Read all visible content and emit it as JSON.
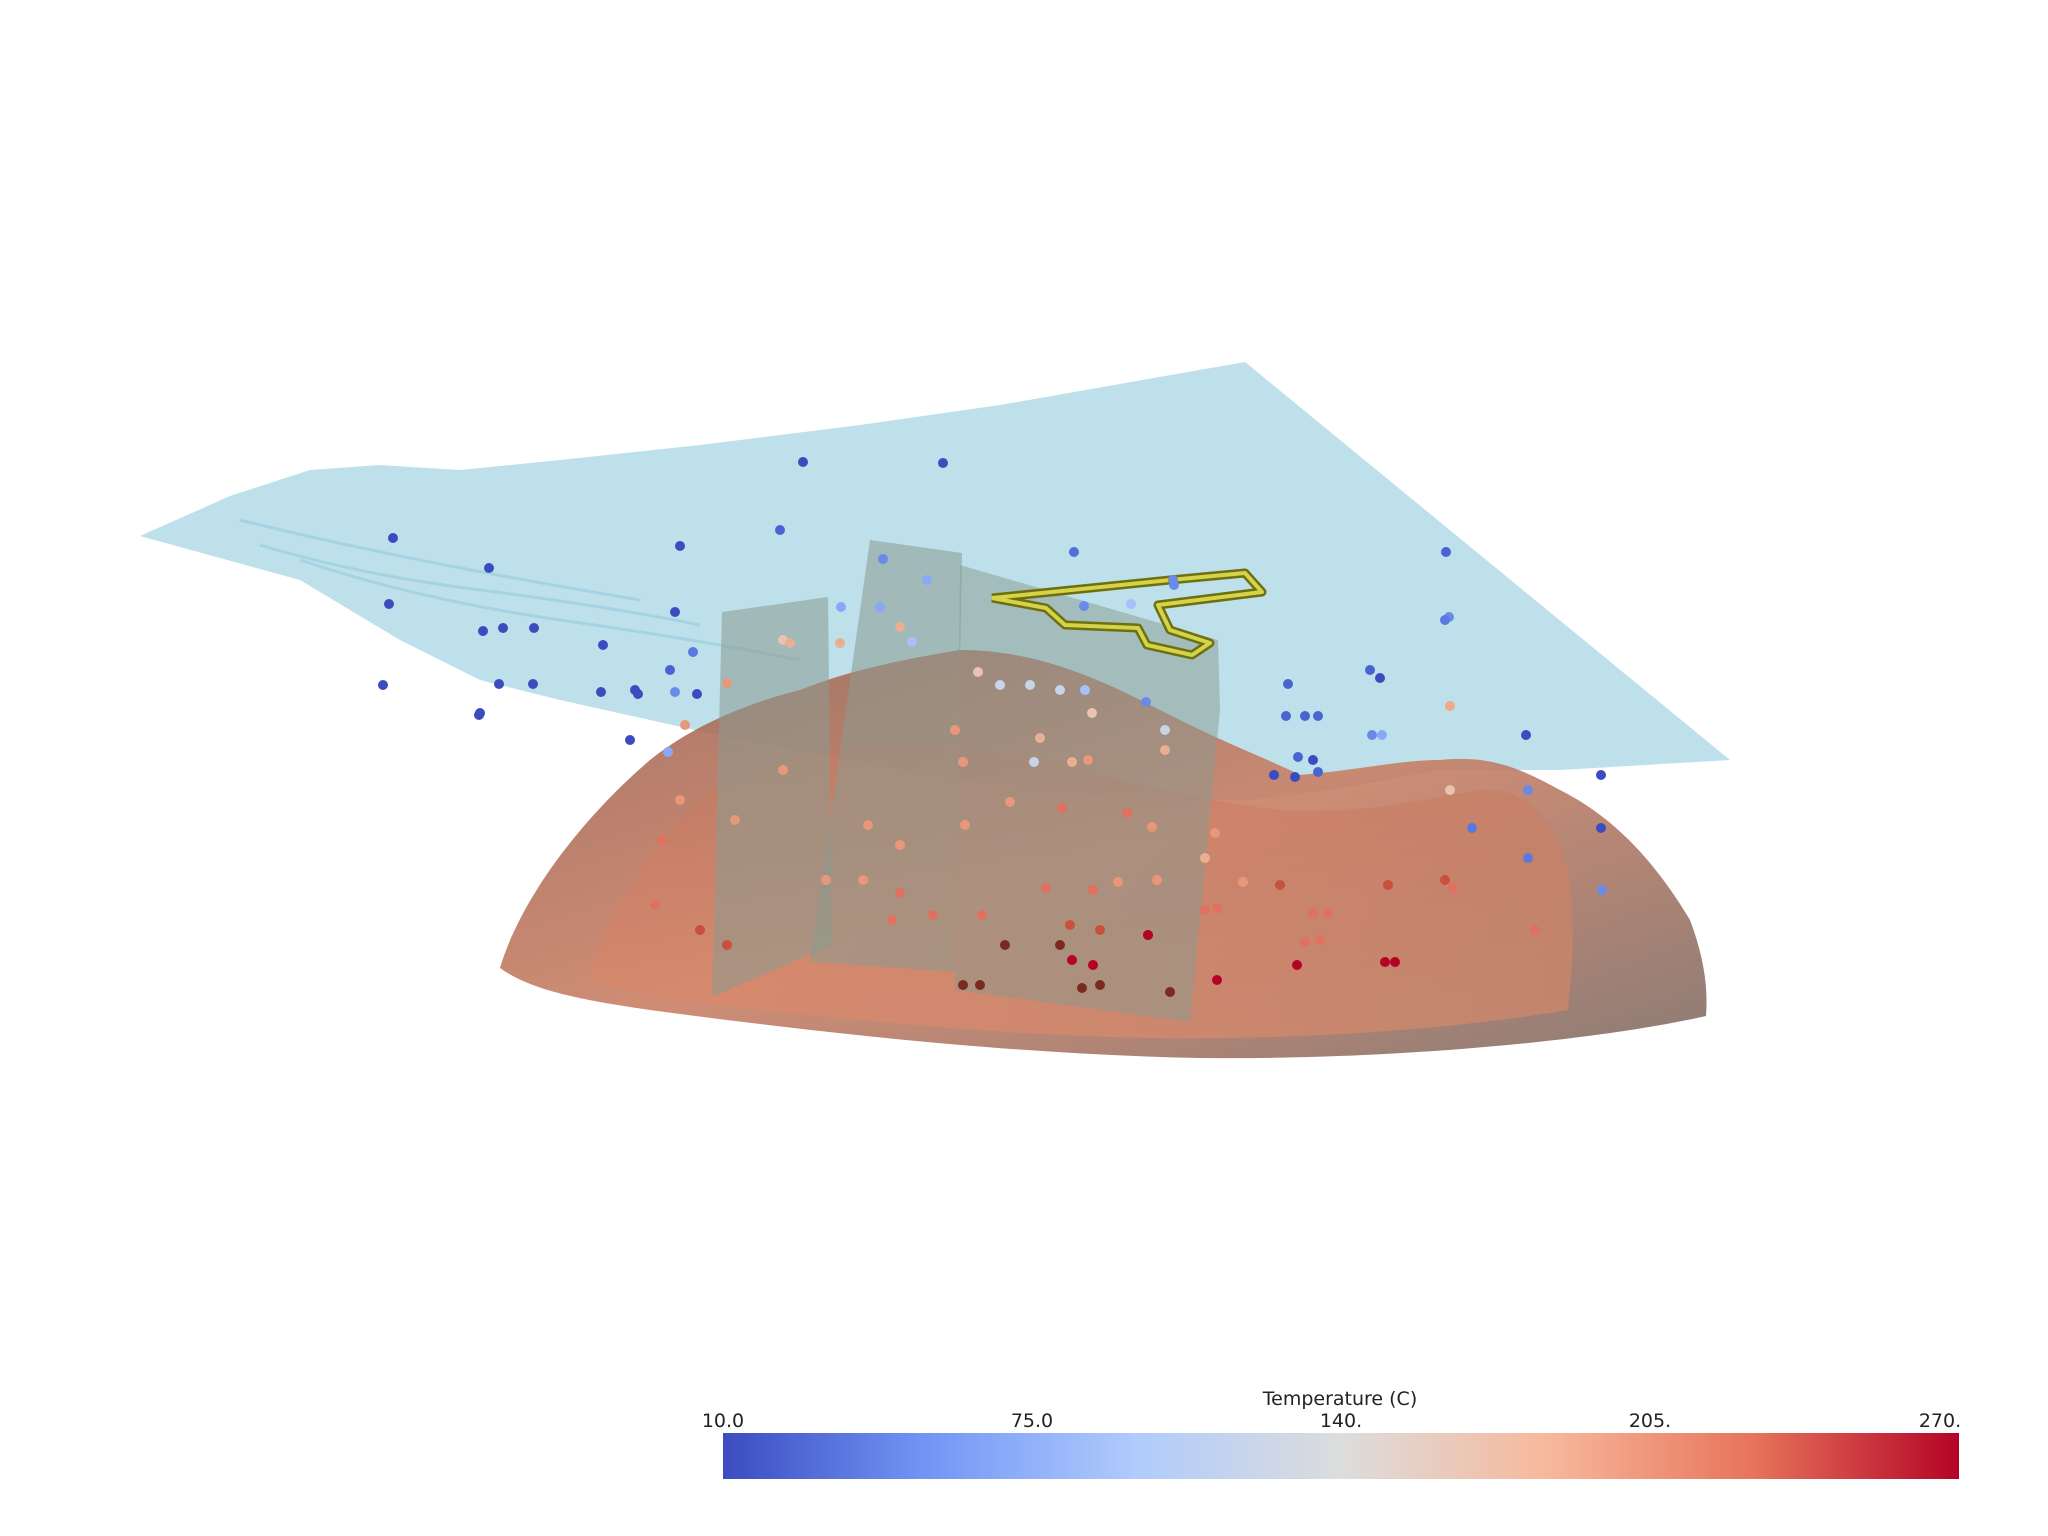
{
  "scene": {
    "water_table_color": "#add8e6",
    "reservoir_color": "#b87a60",
    "section_plane_color": "#8a9a90",
    "outline_color": "#c8c832"
  },
  "colorbar": {
    "title": "Temperature (C)",
    "min": 10,
    "max": 270,
    "ticks": [
      {
        "label": "10.0",
        "value": 10
      },
      {
        "label": "75.0",
        "value": 75
      },
      {
        "label": "140.",
        "value": 140
      },
      {
        "label": "205.",
        "value": 205
      },
      {
        "label": "270.",
        "value": 270
      }
    ],
    "colors": [
      "#3b4cc0",
      "#7396f5",
      "#b0cbfc",
      "#dcdddd",
      "#f7b89c",
      "#e7745b",
      "#b40426"
    ]
  }
}
